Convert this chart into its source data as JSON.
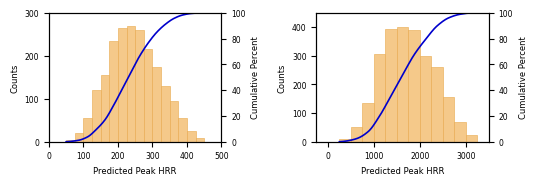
{
  "left": {
    "bin_edges": [
      50,
      75,
      100,
      125,
      150,
      175,
      200,
      225,
      250,
      275,
      300,
      325,
      350,
      375,
      400,
      425,
      450
    ],
    "counts": [
      5,
      20,
      55,
      120,
      155,
      235,
      265,
      270,
      260,
      215,
      175,
      130,
      95,
      55,
      25,
      8
    ],
    "xlim": [
      0,
      500
    ],
    "ylim_counts": [
      0,
      300
    ],
    "ylim_pct": [
      0,
      100
    ],
    "xticks": [
      0,
      100,
      200,
      300,
      400,
      500
    ],
    "yticks_left": [
      0,
      100,
      200,
      300
    ],
    "yticks_right": [
      0,
      20,
      40,
      60,
      80,
      100
    ],
    "xlabel": "Predicted Peak HRR",
    "ylabel_left": "Counts",
    "ylabel_right": "Cumulative Percent",
    "bar_color": "#f5c98a",
    "bar_edgecolor": "#e8a84a",
    "line_color": "#0000cc"
  },
  "right": {
    "bin_edges": [
      250,
      500,
      750,
      1000,
      1250,
      1500,
      1750,
      2000,
      2250,
      2500,
      2750,
      3000,
      3250
    ],
    "counts": [
      10,
      50,
      135,
      305,
      395,
      400,
      390,
      300,
      260,
      155,
      70,
      25
    ],
    "xlim": [
      -250,
      3500
    ],
    "ylim_counts": [
      0,
      450
    ],
    "ylim_pct": [
      0,
      100
    ],
    "xticks": [
      0,
      1000,
      2000,
      3000
    ],
    "yticks_left": [
      0,
      100,
      200,
      300,
      400
    ],
    "yticks_right": [
      0,
      20,
      40,
      60,
      80,
      100
    ],
    "xlabel": "Predicted Peak HRR",
    "ylabel_left": "Counts",
    "ylabel_right": "Cumulative Percent",
    "bar_color": "#f5c98a",
    "bar_edgecolor": "#e8a84a",
    "line_color": "#0000cc"
  }
}
